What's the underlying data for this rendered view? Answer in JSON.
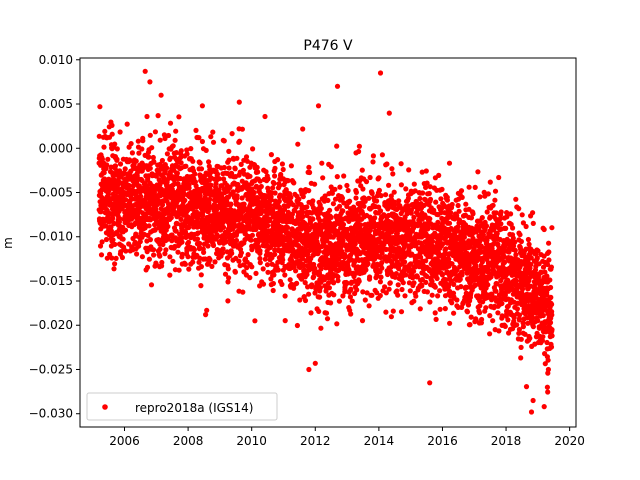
{
  "chart_data": {
    "type": "scatter",
    "title": "P476 V",
    "xlabel": "",
    "ylabel": "m",
    "xlim": [
      2004.6,
      2020.2
    ],
    "ylim": [
      -0.0315,
      0.0102
    ],
    "x_ticks": [
      2006,
      2008,
      2010,
      2012,
      2014,
      2016,
      2018,
      2020
    ],
    "x_tick_labels": [
      "2006",
      "2008",
      "2010",
      "2012",
      "2014",
      "2016",
      "2018",
      "2020"
    ],
    "y_ticks": [
      0.01,
      0.005,
      0.0,
      -0.005,
      -0.01,
      -0.015,
      -0.02,
      -0.025,
      -0.03
    ],
    "y_tick_labels": [
      "0.010",
      "0.005",
      "0.000",
      "−0.005",
      "−0.010",
      "−0.015",
      "−0.020",
      "−0.025",
      "−0.030"
    ],
    "grid": false,
    "legend_position": "lower-left",
    "series": [
      {
        "name": "repro2018a (IGS14)",
        "color": "#ff0000",
        "marker": "circle",
        "x_range": [
          2005.2,
          2019.45
        ],
        "trend": [
          [
            2005.2,
            -0.005
          ],
          [
            2008.0,
            -0.007
          ],
          [
            2010.0,
            -0.0075
          ],
          [
            2012.0,
            -0.011
          ],
          [
            2014.0,
            -0.01
          ],
          [
            2016.0,
            -0.011
          ],
          [
            2018.0,
            -0.014
          ],
          [
            2019.45,
            -0.018
          ]
        ],
        "noise_std": 0.0033,
        "extremes": [
          [
            2006.65,
            0.0087
          ],
          [
            2014.05,
            0.0085
          ],
          [
            2006.8,
            0.0075
          ],
          [
            2012.7,
            0.007
          ],
          [
            2007.15,
            0.006
          ],
          [
            2008.45,
            0.0048
          ],
          [
            2012.1,
            0.0048
          ],
          [
            2015.6,
            -0.0265
          ],
          [
            2018.8,
            -0.0298
          ],
          [
            2018.85,
            -0.0285
          ],
          [
            2019.2,
            -0.0292
          ],
          [
            2019.3,
            -0.027
          ],
          [
            2011.8,
            -0.025
          ],
          [
            2012.0,
            -0.0243
          ],
          [
            2010.1,
            -0.0195
          ],
          [
            2008.55,
            -0.0188
          ]
        ]
      }
    ]
  }
}
